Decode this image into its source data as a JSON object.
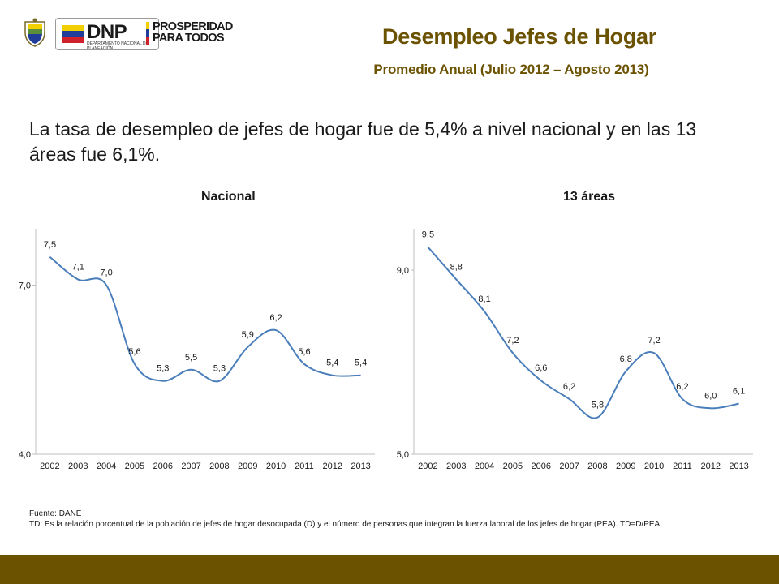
{
  "header": {
    "title": "Desempleo Jefes de Hogar",
    "subtitle": "Promedio Anual (Julio 2012 – Agosto 2013)",
    "logos": {
      "dnp_text": "DNP",
      "dnp_subtext": "DEPARTAMENTO NACIONAL DE PLANEACIÓN",
      "prosperidad_line1": "PROSPERIDAD",
      "prosperidad_line2": "PARA TODOS"
    }
  },
  "lead_text": "La tasa de desempleo de jefes de hogar fue de 5,4% a nivel nacional y en las 13 áreas fue 6,1%.",
  "colors": {
    "accent": "#6b5201",
    "line": "#4a7ebb",
    "axis": "#bfbfbf",
    "flag_yellow": "#f2d000",
    "flag_blue": "#1f3d99",
    "flag_red": "#d0202a"
  },
  "chart_data": [
    {
      "type": "line",
      "title": "Nacional",
      "categories": [
        "2002",
        "2003",
        "2004",
        "2005",
        "2006",
        "2007",
        "2008",
        "2009",
        "2010",
        "2011",
        "2012",
        "2013"
      ],
      "values": [
        7.5,
        7.1,
        7.0,
        5.6,
        5.3,
        5.5,
        5.3,
        5.9,
        6.2,
        5.6,
        5.4,
        5.4
      ],
      "data_labels": [
        "7,5",
        "7,1",
        "7,0",
        "5,6",
        "5,3",
        "5,5",
        "5,3",
        "5,9",
        "6,2",
        "5,6",
        "5,4",
        "5,4"
      ],
      "ylim": [
        4.0,
        8.0
      ],
      "y_ticks": [
        4.0,
        7.0
      ],
      "y_tick_labels": [
        "4,0",
        "7,0"
      ],
      "grid": false
    },
    {
      "type": "line",
      "title": "13 áreas",
      "categories": [
        "2002",
        "2003",
        "2004",
        "2005",
        "2006",
        "2007",
        "2008",
        "2009",
        "2010",
        "2011",
        "2012",
        "2013"
      ],
      "values": [
        9.5,
        8.8,
        8.1,
        7.2,
        6.6,
        6.2,
        5.8,
        6.8,
        7.2,
        6.2,
        6.0,
        6.1
      ],
      "data_labels": [
        "9,5",
        "8,8",
        "8,1",
        "7,2",
        "6,6",
        "6,2",
        "5,8",
        "6,8",
        "7,2",
        "6,2",
        "6,0",
        "6,1"
      ],
      "ylim": [
        5.0,
        9.9
      ],
      "y_ticks": [
        5.0,
        9.0
      ],
      "y_tick_labels": [
        "5,0",
        "9,0"
      ],
      "grid": false
    }
  ],
  "footnote": {
    "source": "Fuente: DANE",
    "definition": "TD:  Es la relación porcentual de la población de jefes de hogar desocupada (D) y el número  de personas que integran la fuerza laboral de los jefes de hogar (PEA). TD=D/PEA"
  }
}
